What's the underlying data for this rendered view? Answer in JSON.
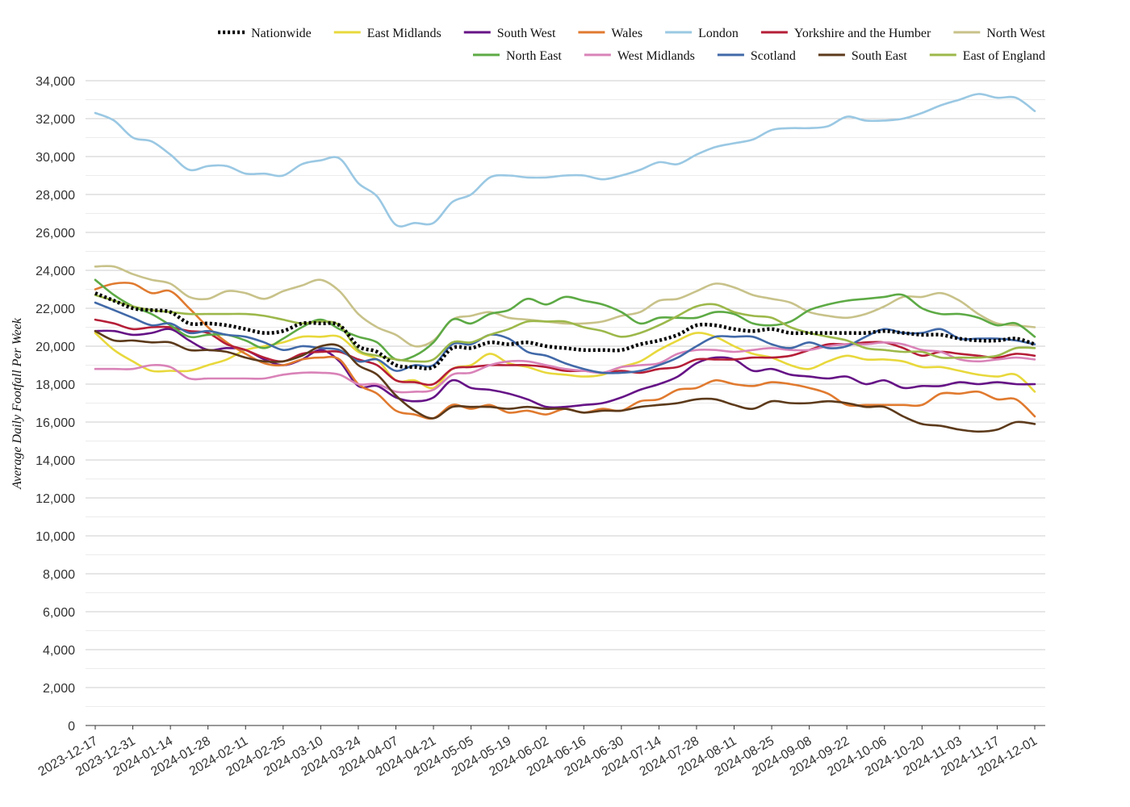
{
  "chart_data": {
    "type": "line",
    "title": "",
    "xlabel": "",
    "ylabel": "Average Daily Footfall Per Week",
    "ylim": [
      0,
      34000
    ],
    "yticks": [
      0,
      2000,
      4000,
      6000,
      8000,
      10000,
      12000,
      14000,
      16000,
      18000,
      20000,
      22000,
      24000,
      26000,
      28000,
      30000,
      32000,
      34000
    ],
    "ytick_labels": [
      "0",
      "2,000",
      "4,000",
      "6,000",
      "8,000",
      "10,000",
      "12,000",
      "14,000",
      "16,000",
      "18,000",
      "20,000",
      "22,000",
      "24,000",
      "26,000",
      "28,000",
      "30,000",
      "32,000",
      "34,000"
    ],
    "grid": true,
    "legend_position": "top",
    "x_tick_labels": [
      "2023-12-17",
      "2023-12-31",
      "2024-01-14",
      "2024-01-28",
      "2024-02-11",
      "2024-02-25",
      "2024-03-10",
      "2024-03-24",
      "2024-04-07",
      "2024-04-21",
      "2024-05-05",
      "2024-05-19",
      "2024-06-02",
      "2024-06-16",
      "2024-06-30",
      "2024-07-14",
      "2024-07-28",
      "2024-08-11",
      "2024-08-25",
      "2024-09-08",
      "2024-09-22",
      "2024-10-06",
      "2024-10-20",
      "2024-11-03",
      "2024-11-17",
      "2024-12-01"
    ],
    "x": [
      "2023-12-17",
      "2023-12-24",
      "2023-12-31",
      "2024-01-07",
      "2024-01-14",
      "2024-01-21",
      "2024-01-28",
      "2024-02-04",
      "2024-02-11",
      "2024-02-18",
      "2024-02-25",
      "2024-03-03",
      "2024-03-10",
      "2024-03-17",
      "2024-03-24",
      "2024-03-31",
      "2024-04-07",
      "2024-04-14",
      "2024-04-21",
      "2024-04-28",
      "2024-05-05",
      "2024-05-12",
      "2024-05-19",
      "2024-05-26",
      "2024-06-02",
      "2024-06-09",
      "2024-06-16",
      "2024-06-23",
      "2024-06-30",
      "2024-07-07",
      "2024-07-14",
      "2024-07-21",
      "2024-07-28",
      "2024-08-04",
      "2024-08-11",
      "2024-08-18",
      "2024-08-25",
      "2024-09-01",
      "2024-09-08",
      "2024-09-15",
      "2024-09-22",
      "2024-09-29",
      "2024-10-06",
      "2024-10-13",
      "2024-10-20",
      "2024-10-27",
      "2024-11-03",
      "2024-11-10",
      "2024-11-17",
      "2024-11-24",
      "2024-12-01"
    ],
    "series": [
      {
        "name": "Nationwide",
        "color": "#000000",
        "dashed": true,
        "values": [
          22800,
          22400,
          22000,
          21900,
          21800,
          21200,
          21200,
          21100,
          20900,
          20700,
          20800,
          21200,
          21200,
          21100,
          20000,
          19700,
          19000,
          18900,
          18900,
          19900,
          19900,
          20200,
          20100,
          20200,
          20000,
          19900,
          19800,
          19800,
          19800,
          20100,
          20300,
          20600,
          21100,
          21100,
          20900,
          20800,
          20900,
          20700,
          20700,
          20700,
          20700,
          20700,
          20800,
          20700,
          20600,
          20600,
          20400,
          20300,
          20300,
          20400,
          20100
        ]
      },
      {
        "name": "East Midlands",
        "color": "#E8D83C",
        "values": [
          20700,
          19800,
          19200,
          18700,
          18700,
          18700,
          19000,
          19300,
          19800,
          20000,
          20200,
          20500,
          20500,
          20500,
          19700,
          19300,
          18200,
          18200,
          17800,
          18800,
          19000,
          19600,
          19100,
          18900,
          18600,
          18500,
          18400,
          18500,
          18900,
          19200,
          19800,
          20300,
          20700,
          20500,
          20000,
          19600,
          19400,
          19000,
          18800,
          19200,
          19500,
          19300,
          19300,
          19200,
          18900,
          18900,
          18700,
          18500,
          18400,
          18500,
          17600
        ]
      },
      {
        "name": "South West",
        "color": "#661386",
        "values": [
          20800,
          20800,
          20600,
          20700,
          20900,
          20300,
          19800,
          19900,
          19800,
          19300,
          19000,
          19300,
          19800,
          19200,
          17900,
          17900,
          17300,
          17100,
          17300,
          18200,
          17800,
          17700,
          17500,
          17200,
          16800,
          16800,
          16900,
          17000,
          17300,
          17700,
          18000,
          18400,
          19100,
          19400,
          19300,
          18700,
          18800,
          18500,
          18400,
          18300,
          18400,
          18000,
          18200,
          17800,
          17900,
          17900,
          18100,
          18000,
          18100,
          18000,
          18000
        ]
      },
      {
        "name": "Wales",
        "color": "#E07A2F",
        "values": [
          23000,
          23300,
          23300,
          22800,
          22900,
          22000,
          21000,
          20200,
          19600,
          19100,
          19000,
          19300,
          19400,
          19300,
          18000,
          17500,
          16600,
          16400,
          16200,
          16900,
          16700,
          16900,
          16500,
          16600,
          16400,
          16700,
          16500,
          16700,
          16600,
          17100,
          17200,
          17700,
          17800,
          18200,
          18000,
          17900,
          18100,
          18000,
          17800,
          17500,
          16900,
          16900,
          16900,
          16900,
          16900,
          17500,
          17500,
          17600,
          17200,
          17200,
          16300
        ]
      },
      {
        "name": "London",
        "color": "#9AC8E3",
        "values": [
          32300,
          31900,
          31000,
          30800,
          30100,
          29300,
          29500,
          29500,
          29100,
          29100,
          29000,
          29600,
          29800,
          29900,
          28600,
          27900,
          26400,
          26500,
          26500,
          27600,
          28000,
          28900,
          29000,
          28900,
          28900,
          29000,
          29000,
          28800,
          29000,
          29300,
          29700,
          29600,
          30100,
          30500,
          30700,
          30900,
          31400,
          31500,
          31500,
          31600,
          32100,
          31900,
          31900,
          32000,
          32300,
          32700,
          33000,
          33300,
          33100,
          33100,
          32400
        ]
      },
      {
        "name": "Yorkshire and the Humber",
        "color": "#B51E37",
        "values": [
          21400,
          21200,
          20900,
          21000,
          21000,
          20800,
          20700,
          20100,
          19800,
          19400,
          19200,
          19600,
          19700,
          19700,
          19300,
          19000,
          18200,
          18100,
          18000,
          18800,
          18900,
          19000,
          19000,
          19000,
          18900,
          18700,
          18700,
          18600,
          18700,
          18600,
          18800,
          18900,
          19300,
          19300,
          19300,
          19400,
          19400,
          19500,
          19800,
          20100,
          20100,
          20200,
          20200,
          19900,
          19500,
          19700,
          19600,
          19500,
          19400,
          19600,
          19500
        ]
      },
      {
        "name": "North West",
        "color": "#C8C28A",
        "values": [
          24200,
          24200,
          23800,
          23500,
          23300,
          22600,
          22500,
          22900,
          22800,
          22500,
          22900,
          23200,
          23500,
          22900,
          21700,
          21000,
          20600,
          20000,
          20300,
          21400,
          21600,
          21800,
          21500,
          21400,
          21300,
          21200,
          21200,
          21300,
          21600,
          21800,
          22400,
          22500,
          22900,
          23300,
          23100,
          22700,
          22500,
          22300,
          21800,
          21600,
          21500,
          21700,
          22100,
          22600,
          22600,
          22800,
          22400,
          21700,
          21200,
          21100,
          21000
        ]
      },
      {
        "name": "North East",
        "color": "#5DAA45",
        "values": [
          23500,
          22700,
          22100,
          21700,
          21100,
          20500,
          20600,
          20600,
          20300,
          19900,
          20400,
          21000,
          21400,
          20900,
          20500,
          20200,
          19300,
          19500,
          20200,
          21400,
          21200,
          21700,
          21900,
          22500,
          22200,
          22600,
          22400,
          22200,
          21800,
          21200,
          21500,
          21500,
          21500,
          21800,
          21700,
          21200,
          21100,
          21300,
          21900,
          22200,
          22400,
          22500,
          22600,
          22700,
          22000,
          21700,
          21700,
          21500,
          21100,
          21200,
          20500
        ]
      },
      {
        "name": "West Midlands",
        "color": "#D983B8",
        "values": [
          18800,
          18800,
          18800,
          19000,
          18900,
          18300,
          18300,
          18300,
          18300,
          18300,
          18500,
          18600,
          18600,
          18500,
          18000,
          18000,
          17600,
          17600,
          17700,
          18500,
          18600,
          19000,
          19200,
          19200,
          19000,
          18800,
          18700,
          18600,
          18900,
          19000,
          19100,
          19600,
          19800,
          19800,
          19700,
          19800,
          19900,
          19800,
          19800,
          20000,
          20100,
          20100,
          20200,
          20100,
          19800,
          19700,
          19300,
          19200,
          19300,
          19400,
          19300
        ]
      },
      {
        "name": "Scotland",
        "color": "#4169A8",
        "values": [
          22300,
          21900,
          21500,
          21100,
          21200,
          20700,
          20800,
          20600,
          20500,
          20200,
          19800,
          20000,
          19900,
          19800,
          19200,
          19300,
          18700,
          19000,
          19000,
          20100,
          20100,
          20600,
          20400,
          19700,
          19500,
          19100,
          18800,
          18600,
          18600,
          18700,
          19000,
          19400,
          20000,
          20500,
          20500,
          20500,
          20100,
          19900,
          20200,
          19900,
          20000,
          20500,
          20900,
          20700,
          20700,
          20900,
          20400,
          20400,
          20400,
          20300,
          20100
        ]
      },
      {
        "name": "South East",
        "color": "#5C3A1B",
        "values": [
          20800,
          20300,
          20300,
          20200,
          20200,
          19800,
          19800,
          19700,
          19400,
          19200,
          19200,
          19500,
          20000,
          20000,
          19000,
          18500,
          17400,
          16600,
          16200,
          16800,
          16800,
          16800,
          16700,
          16800,
          16700,
          16700,
          16500,
          16600,
          16600,
          16800,
          16900,
          17000,
          17200,
          17200,
          16900,
          16700,
          17100,
          17000,
          17000,
          17100,
          17000,
          16800,
          16800,
          16300,
          15900,
          15800,
          15600,
          15500,
          15600,
          16000,
          15900
        ]
      },
      {
        "name": "East of England",
        "color": "#9CB84A",
        "values": [
          22700,
          22400,
          22100,
          21900,
          21800,
          21700,
          21700,
          21700,
          21700,
          21600,
          21400,
          21200,
          21300,
          21100,
          19800,
          19500,
          19300,
          19200,
          19300,
          20200,
          20200,
          20600,
          20900,
          21300,
          21300,
          21300,
          21000,
          20800,
          20500,
          20700,
          21100,
          21600,
          22100,
          22200,
          21800,
          21600,
          21500,
          21000,
          20700,
          20500,
          20300,
          19900,
          19800,
          19700,
          19700,
          19400,
          19400,
          19400,
          19500,
          19900,
          19900
        ]
      }
    ]
  }
}
